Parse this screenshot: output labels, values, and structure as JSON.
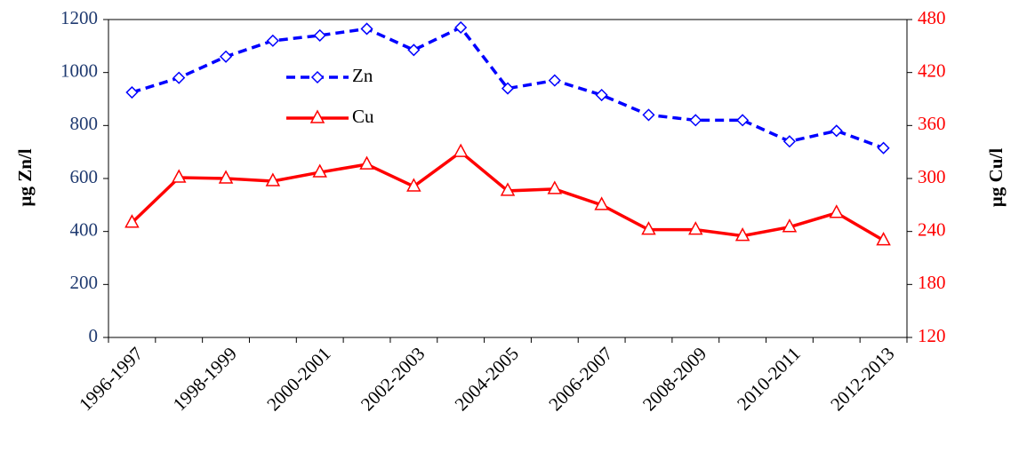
{
  "chart_data": {
    "type": "line",
    "categories": [
      "1996-1997",
      null,
      "1998-1999",
      null,
      "2000-2001",
      null,
      "2002-2003",
      null,
      "2004-2005",
      null,
      "2006-2007",
      null,
      "2008-2009",
      null,
      "2010-2011",
      null,
      "2012-2013"
    ],
    "series": [
      {
        "name": "Zn",
        "color": "#0000ff",
        "axis": "y",
        "dashed": true,
        "marker": "diamond",
        "values": [
          925,
          980,
          1060,
          1120,
          1140,
          1165,
          1085,
          1170,
          940,
          970,
          915,
          840,
          820,
          820,
          740,
          780,
          715
        ]
      },
      {
        "name": "Cu",
        "color": "#ff0000",
        "axis": "y2",
        "dashed": false,
        "marker": "triangle",
        "values": [
          250,
          301,
          300,
          297,
          307,
          316,
          291,
          330,
          286,
          288,
          270,
          242,
          242,
          235,
          245,
          261,
          230
        ]
      }
    ],
    "y_label": "µg Zn/l",
    "y2_label": "µg Cu/l",
    "ylim": [
      0,
      1200
    ],
    "yticks": [
      0,
      200,
      400,
      600,
      800,
      1000,
      1200
    ],
    "y_color": "#1f3a70",
    "y2lim": [
      120,
      480
    ],
    "y2ticks": [
      120,
      180,
      240,
      300,
      360,
      420,
      480
    ],
    "y2_color": "#ff0000",
    "grid": false
  }
}
